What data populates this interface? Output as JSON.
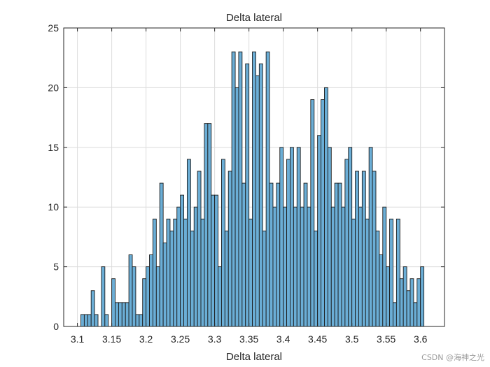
{
  "colors": {
    "bar_fill": "#6baed6",
    "bar_edge": "#1a1a1a",
    "grid": "#dcdcdc",
    "axes": "#262626"
  },
  "watermark": "CSDN @海神之光",
  "chart_data": {
    "type": "bar",
    "title": "Delta lateral",
    "xlabel": "Delta lateral",
    "ylabel": "",
    "xlim": [
      3.08,
      3.635
    ],
    "ylim": [
      0,
      25
    ],
    "grid": true,
    "xticks": [
      3.1,
      3.15,
      3.2,
      3.25,
      3.3,
      3.35,
      3.4,
      3.45,
      3.5,
      3.55,
      3.6
    ],
    "xtick_labels": [
      "3.1",
      "3.15",
      "3.2",
      "3.25",
      "3.3",
      "3.35",
      "3.4",
      "3.45",
      "3.5",
      "3.55",
      "3.6"
    ],
    "yticks": [
      0,
      5,
      10,
      15,
      20,
      25
    ],
    "ytick_labels": [
      "0",
      "5",
      "10",
      "15",
      "20",
      "25"
    ],
    "bin_start": 3.105,
    "bin_width": 0.005,
    "values": [
      1,
      1,
      1,
      3,
      1,
      0,
      5,
      1,
      0,
      4,
      2,
      2,
      2,
      2,
      6,
      5,
      1,
      1,
      4,
      5,
      6,
      9,
      5,
      12,
      7,
      9,
      8,
      9,
      10,
      11,
      9,
      14,
      8,
      10,
      13,
      9,
      17,
      17,
      11,
      11,
      5,
      14,
      8,
      13,
      23,
      20,
      23,
      12,
      22,
      9,
      23,
      21,
      22,
      8,
      23,
      12,
      10,
      12,
      15,
      10,
      14,
      15,
      10,
      15,
      10,
      12,
      10,
      19,
      8,
      16,
      19,
      20,
      15,
      10,
      12,
      12,
      10,
      14,
      15,
      9,
      13,
      10,
      13,
      9,
      15,
      13,
      8,
      6,
      10,
      5,
      9,
      2,
      9,
      4,
      5,
      3,
      4,
      2,
      4,
      5
    ]
  }
}
